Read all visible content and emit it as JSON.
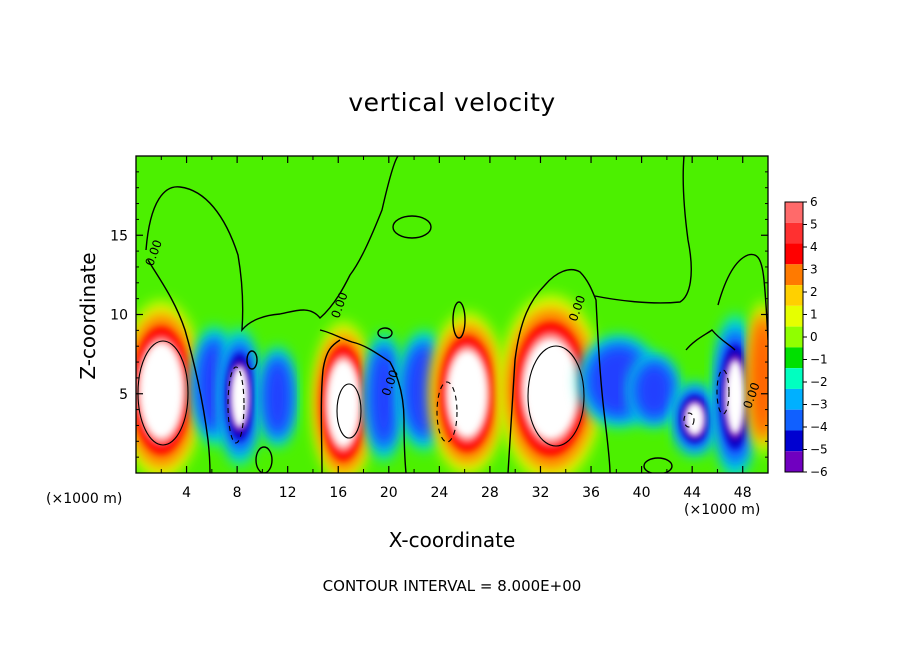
{
  "chart_data": {
    "type": "heatmap",
    "title": "vertical velocity",
    "xlabel": "X-coordinate",
    "ylabel": "Z-coordinate",
    "x_unit_label": "(×1000 m)",
    "y_unit_label": "(×1000 m)",
    "footer": "CONTOUR INTERVAL = 8.000E+00",
    "xlim": [
      0,
      50
    ],
    "ylim": [
      0,
      20
    ],
    "x_ticks": [
      4,
      8,
      12,
      16,
      20,
      24,
      28,
      32,
      36,
      40,
      44,
      48
    ],
    "y_ticks": [
      5,
      10,
      15
    ],
    "contour_labels": [
      {
        "text": "0.00",
        "x": 16.4,
        "y": 10.5
      },
      {
        "text": "0.00",
        "x": 20.4,
        "y": 5.6
      },
      {
        "text": "0.00",
        "x": 35.2,
        "y": 10.3
      },
      {
        "text": "0.00",
        "x": 49.0,
        "y": 4.8
      },
      {
        "text": "0.00",
        "x": 1.7,
        "y": 13.8
      }
    ],
    "colorbar": {
      "levels": [
        6,
        5,
        4,
        3,
        2,
        1,
        0,
        -1,
        -2,
        -3,
        -4,
        -5,
        -6
      ],
      "colors": [
        "#ff6a6a",
        "#ff3030",
        "#ff0000",
        "#ff7a00",
        "#ffd000",
        "#e6ff00",
        "#90ff00",
        "#00e000",
        "#00ffc0",
        "#00b0ff",
        "#1060ff",
        "#0000d0",
        "#7000c0"
      ]
    },
    "cells": [
      {
        "x": 2.0,
        "y": 5.2,
        "rx": 2.4,
        "ry": 4.2,
        "v": 12
      },
      {
        "x": 6.2,
        "y": 5.5,
        "rx": 1.2,
        "ry": 2.6,
        "v": -5
      },
      {
        "x": 8.2,
        "y": 4.8,
        "rx": 1.1,
        "ry": 3.0,
        "v": -12
      },
      {
        "x": 11.2,
        "y": 4.8,
        "rx": 1.0,
        "ry": 2.2,
        "v": -6
      },
      {
        "x": 16.4,
        "y": 4.4,
        "rx": 1.8,
        "ry": 3.8,
        "v": 12
      },
      {
        "x": 19.6,
        "y": 4.8,
        "rx": 1.0,
        "ry": 2.8,
        "v": -5
      },
      {
        "x": 22.8,
        "y": 5.2,
        "rx": 1.4,
        "ry": 2.6,
        "v": -6
      },
      {
        "x": 26.2,
        "y": 5.0,
        "rx": 2.2,
        "ry": 3.8,
        "v": 12
      },
      {
        "x": 32.8,
        "y": 5.3,
        "rx": 3.0,
        "ry": 4.4,
        "v": 12
      },
      {
        "x": 38.2,
        "y": 5.8,
        "rx": 2.2,
        "ry": 2.0,
        "v": -5
      },
      {
        "x": 41.0,
        "y": 5.2,
        "rx": 1.4,
        "ry": 1.6,
        "v": -6
      },
      {
        "x": 44.2,
        "y": 3.4,
        "rx": 1.2,
        "ry": 1.6,
        "v": -12
      },
      {
        "x": 47.4,
        "y": 4.8,
        "rx": 1.2,
        "ry": 3.6,
        "v": -12
      },
      {
        "x": 49.6,
        "y": 6.0,
        "rx": 0.9,
        "ry": 3.6,
        "v": 5
      }
    ]
  }
}
